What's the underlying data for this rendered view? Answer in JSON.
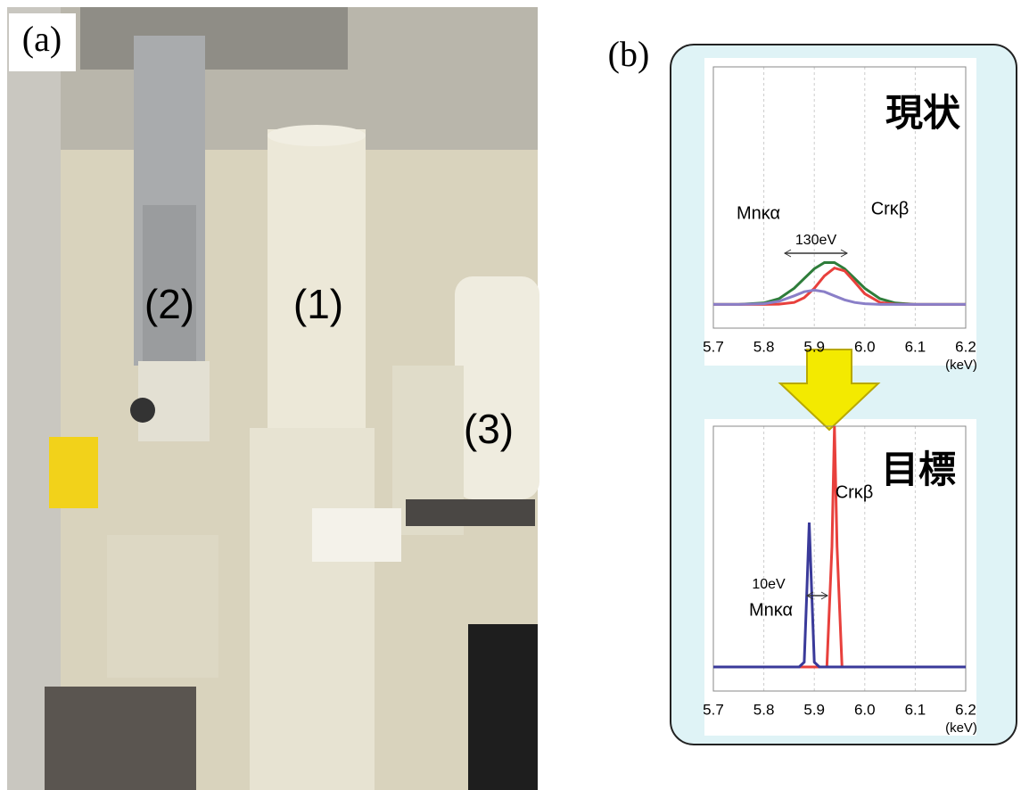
{
  "panel_a": {
    "label": "(a)",
    "callouts": [
      "(1)",
      "(2)",
      "(3)"
    ]
  },
  "panel_b": {
    "label": "(b)"
  },
  "chart_data": [
    {
      "type": "line",
      "title": "現状",
      "annotations": [
        "Mnκα",
        "Crκβ",
        "130eV"
      ],
      "x_unit": "(keV)",
      "x": [
        5.7,
        5.75,
        5.8,
        5.83,
        5.86,
        5.88,
        5.9,
        5.92,
        5.94,
        5.96,
        5.98,
        6.0,
        6.03,
        6.06,
        6.1,
        6.15,
        6.2
      ],
      "series": [
        {
          "color": "#2e7d3a",
          "values": [
            0,
            0,
            0.006,
            0.024,
            0.068,
            0.109,
            0.15,
            0.176,
            0.176,
            0.15,
            0.109,
            0.068,
            0.024,
            0.006,
            0,
            0,
            0
          ]
        },
        {
          "color": "#e8403c",
          "values": [
            0,
            0,
            0,
            0.001,
            0.008,
            0.028,
            0.068,
            0.12,
            0.153,
            0.141,
            0.094,
            0.045,
            0.008,
            0.001,
            0,
            0,
            0
          ]
        },
        {
          "color": "#8a7fc8",
          "values": [
            0,
            0,
            0.003,
            0.013,
            0.036,
            0.053,
            0.06,
            0.053,
            0.036,
            0.019,
            0.008,
            0.003,
            0,
            0,
            0,
            0,
            0
          ]
        }
      ],
      "xlim": [
        5.7,
        6.2
      ],
      "ylim": [
        -0.1,
        1
      ],
      "xticks": [
        5.7,
        5.8,
        5.9,
        {
          "value": 6,
          "label": "6.0"
        },
        6.1,
        6.2
      ],
      "grid": true
    },
    {
      "type": "line",
      "title": "目標",
      "annotations": [
        "Mnκα",
        "Crκβ",
        "10eV"
      ],
      "x_unit": "(keV)",
      "x": [
        5.7,
        5.87,
        5.88,
        5.885,
        5.89,
        5.895,
        5.9,
        5.91,
        5.925,
        5.935,
        5.94,
        5.945,
        5.955,
        5.97,
        6.2
      ],
      "series": [
        {
          "color": "#e8403c",
          "values": [
            0,
            0,
            0,
            0,
            0,
            0,
            0,
            0,
            0,
            0.5,
            1,
            0.5,
            0,
            0,
            0
          ]
        },
        {
          "color": "#3a3a9a",
          "values": [
            0,
            0,
            0.02,
            0.3,
            0.6,
            0.3,
            0.02,
            0,
            0,
            0,
            0,
            0,
            0,
            0,
            0
          ]
        }
      ],
      "xlim": [
        5.7,
        6.2
      ],
      "ylim": [
        -0.1,
        1
      ],
      "xticks": [
        5.7,
        5.8,
        5.9,
        {
          "value": 6,
          "label": "6.0"
        },
        6.1,
        6.2
      ],
      "grid": true
    }
  ]
}
